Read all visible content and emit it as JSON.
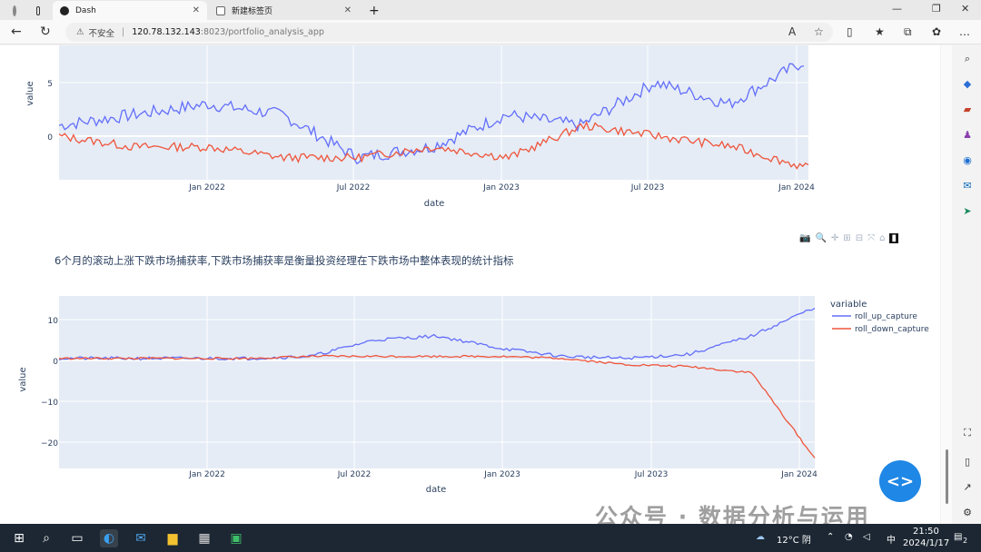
{
  "browser": {
    "tabs": [
      {
        "label": "Dash",
        "close": "✕"
      },
      {
        "label": "新建标签页",
        "close": "✕"
      }
    ],
    "new_tab": "+",
    "security_label": "不安全",
    "url_host": "120.78.132.143",
    "url_path": ":8023/portfolio_analysis_app"
  },
  "chart_top": {
    "ylabel": "value",
    "xlabel": "date",
    "yticks": [
      "5",
      "0"
    ],
    "xticks": [
      "Jan 2022",
      "Jul 2022",
      "Jan 2023",
      "Jul 2023",
      "Jan 2024"
    ]
  },
  "section_title": "6个月的滚动上涨下跌市场捕获率,下跌市场捕获率是衡量投资经理在下跌市场中整体表现的统计指标",
  "chart_data": [
    {
      "type": "line",
      "xlabel": "date",
      "ylabel": "value",
      "x": [
        "2021-08",
        "2021-10",
        "2022-01",
        "2022-04",
        "2022-07",
        "2022-10",
        "2023-01",
        "2023-04",
        "2023-07",
        "2023-10",
        "2024-01"
      ],
      "series": [
        {
          "values": [
            1,
            2,
            3,
            2,
            -2,
            -1,
            2,
            1,
            5,
            3,
            7
          ],
          "color": "#636efa"
        },
        {
          "values": [
            0,
            -1,
            -1,
            -2,
            -2,
            -1,
            -2,
            1,
            0,
            -1,
            -3
          ],
          "color": "#ef553b"
        }
      ]
    },
    {
      "type": "line",
      "xlabel": "date",
      "ylabel": "value",
      "yticks": [
        "10",
        "0",
        "−10",
        "−20"
      ],
      "ylim": [
        -25,
        16
      ],
      "x": [
        "2021-08",
        "2021-10",
        "2022-01",
        "2022-04",
        "2022-07",
        "2022-09",
        "2022-11",
        "2023-01",
        "2023-04",
        "2023-07",
        "2023-10",
        "2023-12",
        "2024-01"
      ],
      "series": [
        {
          "name": "roll_up_capture",
          "values": [
            0.5,
            0.5,
            0.5,
            0.5,
            1,
            5,
            6,
            3,
            1,
            0.5,
            1.5,
            6,
            13
          ],
          "color": "#636efa"
        },
        {
          "name": "roll_down_capture",
          "values": [
            0.5,
            0.5,
            0.5,
            0.5,
            1,
            1,
            1,
            1,
            0.5,
            -1,
            -1.5,
            -3,
            -24
          ],
          "color": "#ef553b"
        }
      ],
      "legend_title": "variable"
    }
  ],
  "chart_bottom": {
    "ylabel": "value",
    "xlabel": "date",
    "yticks": [
      "10",
      "0",
      "−10",
      "−20"
    ],
    "xticks": [
      "Jan 2022",
      "Jul 2022",
      "Jan 2023",
      "Jul 2023",
      "Jan 2024"
    ],
    "legend_title": "variable",
    "legend": [
      "roll_up_capture",
      "roll_down_capture"
    ]
  },
  "fab_label": "<>",
  "watermark": "公众号 · 数据分析与运用",
  "taskbar": {
    "weather": "12°C 阴",
    "ime": "中",
    "time": "21:50",
    "date": "2024/1/17",
    "notif": "2"
  }
}
